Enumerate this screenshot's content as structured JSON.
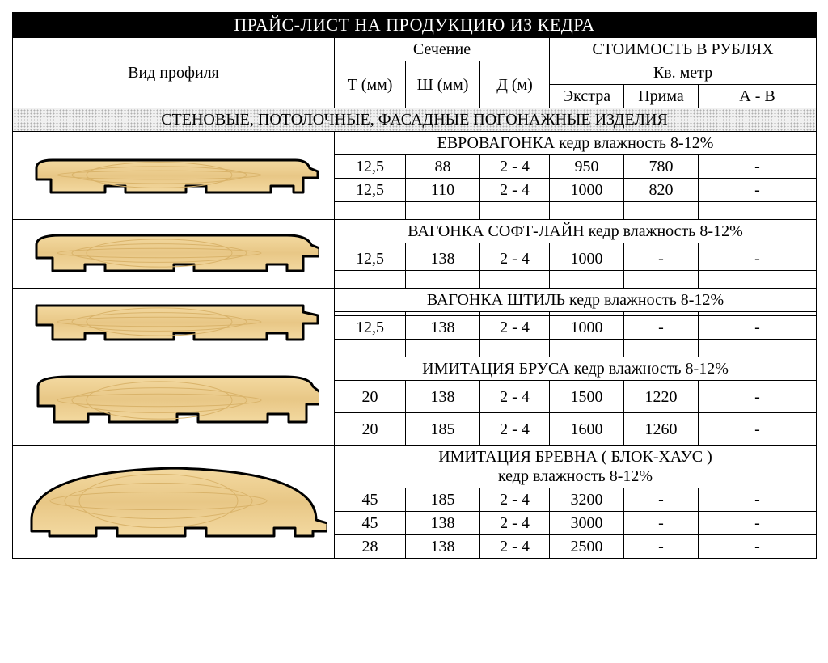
{
  "colors": {
    "wood_light": "#f3d9a0",
    "wood_mid": "#e8c786",
    "wood_dark": "#d9b36a",
    "outline": "#000000"
  },
  "title": "ПРАЙС-ЛИСТ НА ПРОДУКЦИЮ ИЗ КЕДРА",
  "headers": {
    "profile": "Вид профиля",
    "section": "Сечение",
    "price": "СТОИМОСТЬ В РУБЛЯХ",
    "t": "Т (мм)",
    "w": "Ш (мм)",
    "d": "Д (м)",
    "sqm": "Кв. метр",
    "extra": "Экстра",
    "prima": "Прима",
    "ab": "А - В"
  },
  "category": "СТЕНОВЫЕ, ПОТОЛОЧНЫЕ, ФАСАДНЫЕ ПОГОНАЖНЫЕ ИЗДЕЛИЯ",
  "products": [
    {
      "header": "ЕВРОВАГОНКА кедр влажность 8-12%",
      "profile_type": "eurovagonka",
      "rows": [
        {
          "t": "12,5",
          "w": "88",
          "d": "2 - 4",
          "extra": "950",
          "prima": "780",
          "ab": "-"
        },
        {
          "t": "12,5",
          "w": "110",
          "d": "2 - 4",
          "extra": "1000",
          "prima": "820",
          "ab": "-"
        }
      ],
      "trailing_empty": 1
    },
    {
      "header": "ВАГОНКА СОФТ-ЛАЙН кедр влажность 8-12%",
      "profile_type": "softline",
      "rows": [
        {
          "t": "",
          "w": "",
          "d": "",
          "extra": "",
          "prima": "",
          "ab": ""
        },
        {
          "t": "12,5",
          "w": "138",
          "d": "2 - 4",
          "extra": "1000",
          "prima": "-",
          "ab": "-"
        }
      ],
      "trailing_empty": 1
    },
    {
      "header": "ВАГОНКА ШТИЛЬ кедр влажность 8-12%",
      "profile_type": "shtil",
      "rows": [
        {
          "t": "",
          "w": "",
          "d": "",
          "extra": "",
          "prima": "",
          "ab": ""
        },
        {
          "t": "12,5",
          "w": "138",
          "d": "2 - 4",
          "extra": "1000",
          "prima": "-",
          "ab": "-"
        }
      ],
      "trailing_empty": 1
    },
    {
      "header": "ИМИТАЦИЯ БРУСА кедр влажность 8-12%",
      "profile_type": "brus",
      "rows": [
        {
          "t": "20",
          "w": "138",
          "d": "2 - 4",
          "extra": "1500",
          "prima": "1220",
          "ab": "-",
          "tall": true
        },
        {
          "t": "20",
          "w": "185",
          "d": "2 - 4",
          "extra": "1600",
          "prima": "1260",
          "ab": "-",
          "tall": true
        }
      ],
      "trailing_empty": 0
    },
    {
      "header": "ИМИТАЦИЯ БРЕВНА ( БЛОК-ХАУС )\nкедр влажность 8-12%",
      "profile_type": "blockhaus",
      "rows": [
        {
          "t": "45",
          "w": "185",
          "d": "2 - 4",
          "extra": "3200",
          "prima": "-",
          "ab": "-"
        },
        {
          "t": "45",
          "w": "138",
          "d": "2 - 4",
          "extra": "3000",
          "prima": "-",
          "ab": "-"
        },
        {
          "t": "28",
          "w": "138",
          "d": "2 - 4",
          "extra": "2500",
          "prima": "-",
          "ab": "-"
        }
      ],
      "trailing_empty": 0
    }
  ]
}
